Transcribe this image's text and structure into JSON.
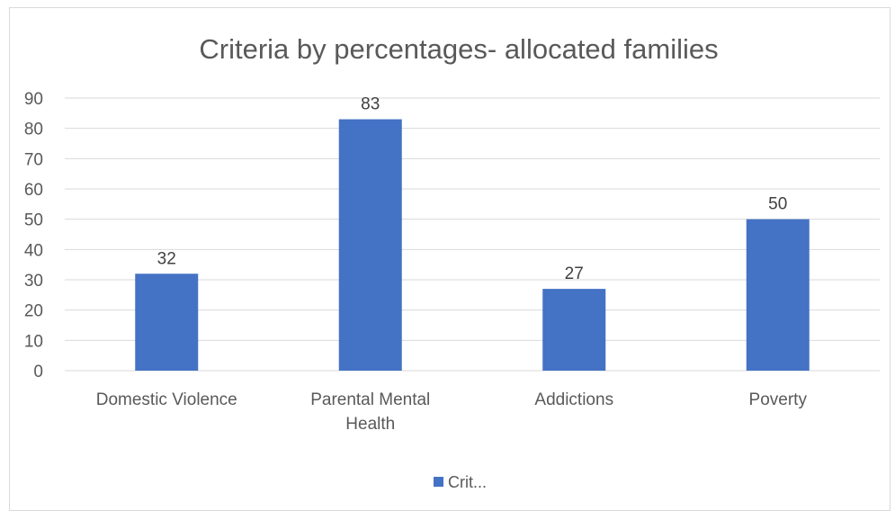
{
  "chart_data": {
    "type": "bar",
    "title": "Criteria by percentages-  allocated families",
    "categories": [
      [
        "Domestic Violence"
      ],
      [
        "Parental Mental",
        "Health"
      ],
      [
        "Addictions"
      ],
      [
        "Poverty"
      ]
    ],
    "series": [
      {
        "name": "Crit...",
        "values": [
          32,
          83,
          27,
          50
        ],
        "color": "#4472C4"
      }
    ],
    "ylim": [
      0,
      90
    ],
    "yticks": [
      0,
      10,
      20,
      30,
      40,
      50,
      60,
      70,
      80,
      90
    ],
    "grid": true,
    "legend_position": "bottom",
    "data_labels": true
  }
}
